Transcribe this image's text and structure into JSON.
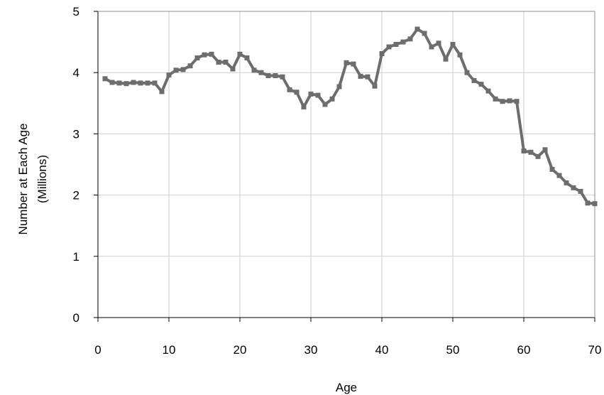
{
  "chart_data": {
    "type": "line",
    "xlabel": "Age",
    "ylabel_lines": [
      "Number at Each Age",
      "(Millions)"
    ],
    "xlim": [
      0,
      70
    ],
    "ylim": [
      0,
      5
    ],
    "x_ticks": [
      "0",
      "10",
      "20",
      "30",
      "40",
      "50",
      "60",
      "70"
    ],
    "y_ticks": [
      "0",
      "1",
      "2",
      "3",
      "4",
      "5"
    ],
    "grid": true,
    "series": [
      {
        "color": "#6d6d6d",
        "x": [
          1,
          2,
          3,
          4,
          5,
          6,
          7,
          8,
          9,
          10,
          11,
          12,
          13,
          14,
          15,
          16,
          17,
          18,
          19,
          20,
          21,
          22,
          23,
          24,
          25,
          26,
          27,
          28,
          29,
          30,
          31,
          32,
          33,
          34,
          35,
          36,
          37,
          38,
          39,
          40,
          41,
          42,
          43,
          44,
          45,
          46,
          47,
          48,
          49,
          50,
          51,
          52,
          53,
          54,
          55,
          56,
          57,
          58,
          59,
          60,
          61,
          62,
          63,
          64,
          65,
          66,
          67,
          68,
          69,
          70
        ],
        "values": [
          3.9,
          3.84,
          3.83,
          3.82,
          3.84,
          3.83,
          3.83,
          3.83,
          3.69,
          3.96,
          4.04,
          4.05,
          4.11,
          4.24,
          4.29,
          4.3,
          4.17,
          4.17,
          4.06,
          4.3,
          4.24,
          4.04,
          4.0,
          3.95,
          3.95,
          3.93,
          3.72,
          3.68,
          3.44,
          3.65,
          3.63,
          3.48,
          3.57,
          3.77,
          4.16,
          4.14,
          3.94,
          3.93,
          3.78,
          4.31,
          4.42,
          4.46,
          4.5,
          4.55,
          4.71,
          4.64,
          4.42,
          4.48,
          4.22,
          4.46,
          4.29,
          4.0,
          3.87,
          3.81,
          3.7,
          3.57,
          3.53,
          3.54,
          3.53,
          2.72,
          2.7,
          2.63,
          2.74,
          2.42,
          2.32,
          2.2,
          2.12,
          2.06,
          1.87,
          1.86
        ]
      }
    ]
  }
}
